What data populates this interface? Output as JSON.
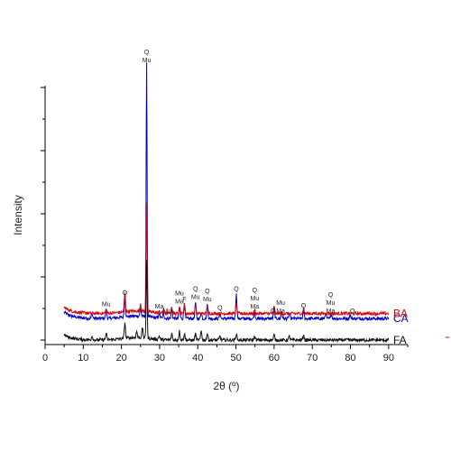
{
  "chart_data": {
    "type": "line",
    "title": "",
    "xlabel": "2θ (º)",
    "ylabel": "Intensity",
    "xlim": [
      0,
      95
    ],
    "x_ticks": [
      0,
      10,
      20,
      30,
      40,
      50,
      60,
      70,
      80,
      90
    ],
    "y_tick_labels_shown": false,
    "grid": false,
    "legend": "series labels placed at right end of each trace",
    "series": [
      {
        "name": "CA",
        "color": "#0000cc",
        "baseline": 0.34,
        "start_level": 0.44,
        "noise": 0.05,
        "peaks": [
          [
            12.3,
            0.08
          ],
          [
            16.0,
            0.14
          ],
          [
            20.9,
            0.32
          ],
          [
            25.0,
            0.12
          ],
          [
            26.6,
            4.0
          ],
          [
            29.9,
            0.1
          ],
          [
            31.0,
            0.08
          ],
          [
            33.2,
            0.15
          ],
          [
            35.2,
            0.18
          ],
          [
            36.5,
            0.22
          ],
          [
            39.4,
            0.25
          ],
          [
            40.9,
            0.1
          ],
          [
            42.5,
            0.22
          ],
          [
            45.8,
            0.08
          ],
          [
            50.1,
            0.38
          ],
          [
            54.9,
            0.1
          ],
          [
            60.0,
            0.18
          ],
          [
            62.0,
            0.1
          ],
          [
            64.0,
            0.08
          ],
          [
            67.7,
            0.12
          ],
          [
            73.5,
            0.08
          ],
          [
            75.0,
            0.07
          ],
          [
            79.9,
            0.06
          ]
        ]
      },
      {
        "name": "BA",
        "color": "#dd0000",
        "baseline": 0.42,
        "start_level": 0.52,
        "noise": 0.05,
        "peaks": [
          [
            16.0,
            0.06
          ],
          [
            20.9,
            0.3
          ],
          [
            25.0,
            0.12
          ],
          [
            26.6,
            1.75
          ],
          [
            31.0,
            0.06
          ],
          [
            33.2,
            0.1
          ],
          [
            35.2,
            0.12
          ],
          [
            36.5,
            0.14
          ],
          [
            39.4,
            0.14
          ],
          [
            42.5,
            0.12
          ],
          [
            50.1,
            0.15
          ],
          [
            54.9,
            0.06
          ],
          [
            60.0,
            0.1
          ],
          [
            67.7,
            0.08
          ]
        ]
      },
      {
        "name": "FA",
        "color": "#111111",
        "baseline": 0.0,
        "start_level": 0.08,
        "noise": 0.05,
        "peaks": [
          [
            12.3,
            0.06
          ],
          [
            16.0,
            0.1
          ],
          [
            20.9,
            0.25
          ],
          [
            24.0,
            0.1
          ],
          [
            25.5,
            0.15
          ],
          [
            26.6,
            1.25
          ],
          [
            29.9,
            0.06
          ],
          [
            33.2,
            0.1
          ],
          [
            35.2,
            0.14
          ],
          [
            36.5,
            0.1
          ],
          [
            39.4,
            0.1
          ],
          [
            40.9,
            0.14
          ],
          [
            42.5,
            0.1
          ],
          [
            45.8,
            0.06
          ],
          [
            50.1,
            0.1
          ],
          [
            54.9,
            0.06
          ],
          [
            60.0,
            0.08
          ],
          [
            64.0,
            0.06
          ],
          [
            67.7,
            0.08
          ]
        ]
      }
    ],
    "annotations": [
      {
        "x": 26.6,
        "lines": [
          "Q",
          "Mu"
        ],
        "series": "CA"
      },
      {
        "x": 16.0,
        "lines": [
          "Mu"
        ],
        "series": "CA"
      },
      {
        "x": 20.9,
        "lines": [
          "Q"
        ],
        "series": "CA"
      },
      {
        "x": 29.9,
        "lines": [
          "Ma"
        ],
        "series": "CA"
      },
      {
        "x": 32.0,
        "lines": [
          "Mu"
        ],
        "series": "CA"
      },
      {
        "x": 35.2,
        "lines": [
          "Mu",
          "Ma"
        ],
        "series": "CA"
      },
      {
        "x": 36.5,
        "lines": [
          "F"
        ],
        "series": "CA"
      },
      {
        "x": 39.4,
        "lines": [
          "Q",
          "Mu"
        ],
        "series": "CA"
      },
      {
        "x": 42.5,
        "lines": [
          "Q",
          "Mu"
        ],
        "series": "CA"
      },
      {
        "x": 45.8,
        "lines": [
          "Q"
        ],
        "series": "CA"
      },
      {
        "x": 50.1,
        "lines": [
          "Q"
        ],
        "series": "CA"
      },
      {
        "x": 54.9,
        "lines": [
          "Q",
          "Mu",
          "Ma"
        ],
        "series": "CA"
      },
      {
        "x": 59.7,
        "lines": [
          "Q"
        ],
        "series": "CA"
      },
      {
        "x": 61.7,
        "lines": [
          "Mu",
          "Ma"
        ],
        "series": "CA"
      },
      {
        "x": 67.7,
        "lines": [
          "Q"
        ],
        "series": "CA"
      },
      {
        "x": 74.8,
        "lines": [
          "Q",
          "Mu",
          "Ma"
        ],
        "series": "CA"
      },
      {
        "x": 80.5,
        "lines": [
          "Q"
        ],
        "series": "CA"
      }
    ]
  }
}
